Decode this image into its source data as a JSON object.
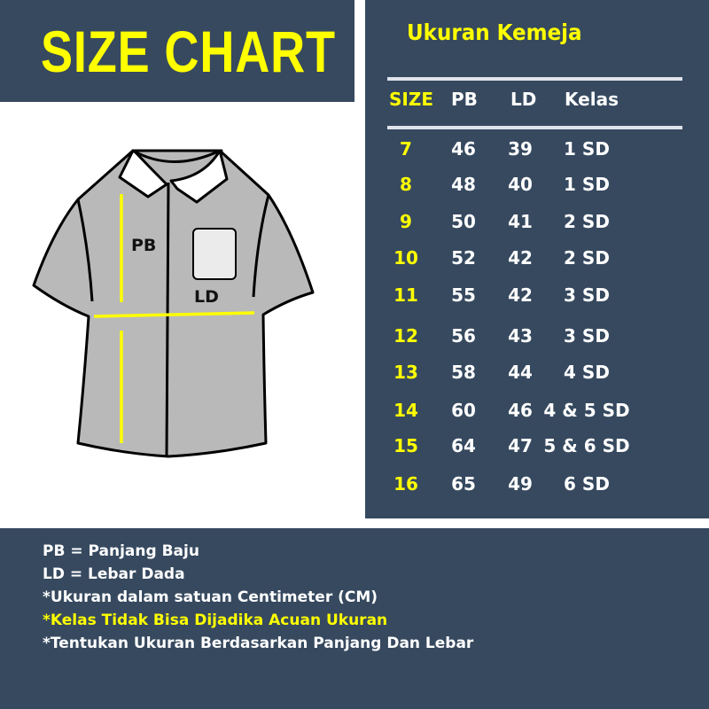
{
  "header": {
    "title": "SIZE CHART"
  },
  "table": {
    "title": "Ukuran Kemeja",
    "columns": [
      "SIZE",
      "PB",
      "LD",
      "Kelas"
    ],
    "rows": [
      [
        "7",
        "46",
        "39",
        "1 SD"
      ],
      [
        "8",
        "48",
        "40",
        "1 SD"
      ],
      [
        "9",
        "50",
        "41",
        "2 SD"
      ],
      [
        "10",
        "52",
        "42",
        "2 SD"
      ],
      [
        "11",
        "55",
        "42",
        "3 SD"
      ],
      [
        "12",
        "56",
        "43",
        "3 SD"
      ],
      [
        "13",
        "58",
        "44",
        "4 SD"
      ],
      [
        "14",
        "60",
        "46",
        "4 & 5 SD"
      ],
      [
        "15",
        "64",
        "47",
        "5 & 6 SD"
      ],
      [
        "16",
        "65",
        "49",
        "6 SD"
      ]
    ]
  },
  "diagram": {
    "pb_label": "PB",
    "ld_label": "LD"
  },
  "notes": [
    {
      "text": "PB = Panjang Baju",
      "highlight": false
    },
    {
      "text": "LD = Lebar Dada",
      "highlight": false
    },
    {
      "text": "*Ukuran dalam satuan Centimeter (CM)",
      "highlight": false
    },
    {
      "text": "*Kelas Tidak Bisa Dijadika Acuan Ukuran",
      "highlight": true
    },
    {
      "text": "*Tentukan Ukuran Berdasarkan Panjang Dan Lebar",
      "highlight": false
    }
  ],
  "colors": {
    "panel": "#36495f",
    "accent": "#ffff00",
    "text": "#ffffff",
    "shirt": "#b9b9b9"
  }
}
